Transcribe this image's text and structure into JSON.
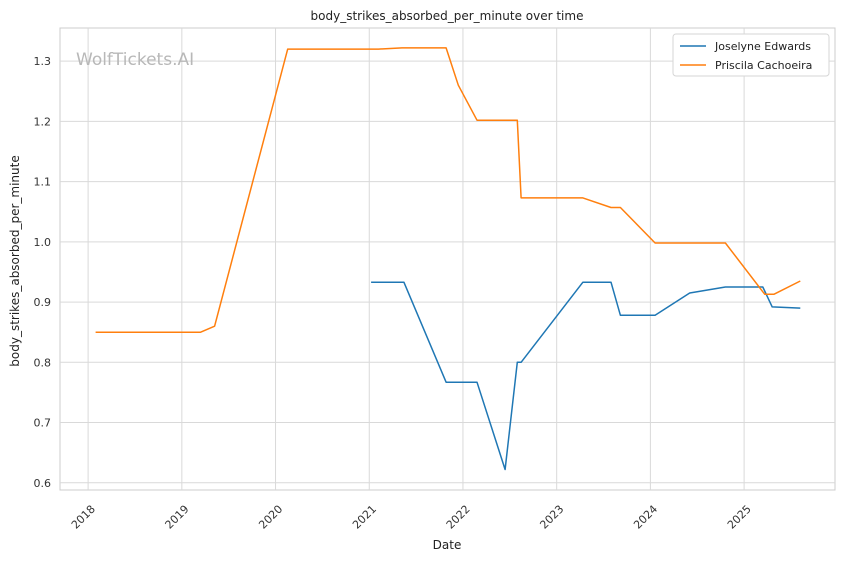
{
  "chart_data": {
    "type": "line",
    "title": "body_strikes_absorbed_per_minute over time",
    "xlabel": "Date",
    "ylabel": "body_strikes_absorbed_per_minute",
    "watermark": "WolfTickets.AI",
    "x_ticks": [
      "2018",
      "2019",
      "2020",
      "2021",
      "2022",
      "2023",
      "2024",
      "2025"
    ],
    "y_ticks": [
      "0.6",
      "0.7",
      "0.8",
      "0.9",
      "1.0",
      "1.1",
      "1.2",
      "1.3"
    ],
    "xlim": [
      2017.7,
      2025.97
    ],
    "ylim": [
      0.588,
      1.355
    ],
    "grid": true,
    "legend": "top-right",
    "series": [
      {
        "name": "Joselyne Edwards",
        "color": "#1f77b4",
        "points": [
          [
            2021.02,
            0.933
          ],
          [
            2021.37,
            0.933
          ],
          [
            2021.82,
            0.767
          ],
          [
            2022.15,
            0.767
          ],
          [
            2022.45,
            0.622
          ],
          [
            2022.58,
            0.8
          ],
          [
            2022.62,
            0.8
          ],
          [
            2023.28,
            0.933
          ],
          [
            2023.58,
            0.933
          ],
          [
            2023.68,
            0.878
          ],
          [
            2024.05,
            0.878
          ],
          [
            2024.42,
            0.915
          ],
          [
            2024.8,
            0.925
          ],
          [
            2025.2,
            0.925
          ],
          [
            2025.3,
            0.892
          ],
          [
            2025.6,
            0.89
          ]
        ]
      },
      {
        "name": "Priscila Cachoeira",
        "color": "#ff7f0e",
        "points": [
          [
            2018.08,
            0.85
          ],
          [
            2019.2,
            0.85
          ],
          [
            2019.35,
            0.86
          ],
          [
            2020.13,
            1.32
          ],
          [
            2021.1,
            1.32
          ],
          [
            2021.35,
            1.322
          ],
          [
            2021.82,
            1.322
          ],
          [
            2021.95,
            1.26
          ],
          [
            2022.15,
            1.202
          ],
          [
            2022.58,
            1.202
          ],
          [
            2022.62,
            1.073
          ],
          [
            2023.28,
            1.073
          ],
          [
            2023.58,
            1.057
          ],
          [
            2023.68,
            1.057
          ],
          [
            2024.05,
            0.998
          ],
          [
            2024.8,
            0.998
          ],
          [
            2025.22,
            0.913
          ],
          [
            2025.32,
            0.913
          ],
          [
            2025.6,
            0.935
          ]
        ]
      }
    ]
  }
}
